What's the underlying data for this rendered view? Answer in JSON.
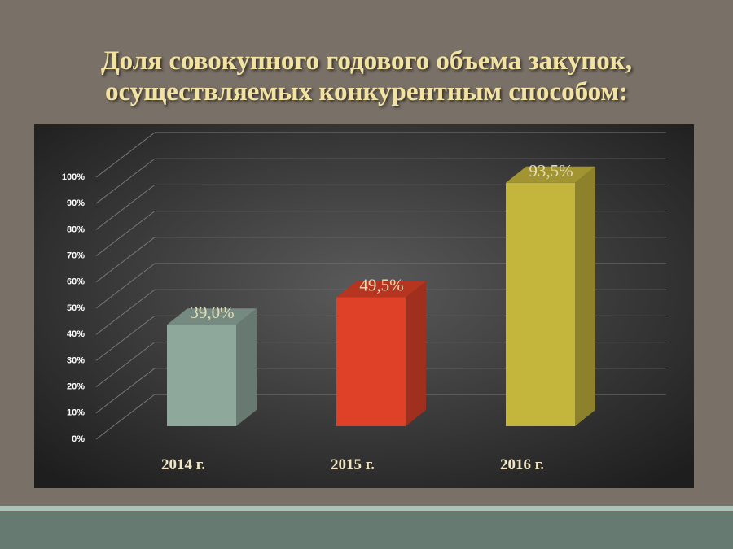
{
  "chart_data": {
    "type": "bar3d",
    "title": [
      "Доля совокупного годового объема закупок,",
      "осуществляемых конкурентным способом:"
    ],
    "categories": [
      "2014 г.",
      "2015 г.",
      "2016 г."
    ],
    "values": [
      39.0,
      49.5,
      93.5
    ],
    "value_labels": [
      "39,0%",
      "49,5%",
      "93,5%"
    ],
    "colors": [
      "#8fa89c",
      "#de4128",
      "#c4b53c"
    ],
    "ylim": [
      0,
      100
    ],
    "yticks": [
      {
        "value": 0,
        "label": "0%"
      },
      {
        "value": 10,
        "label": "10%"
      },
      {
        "value": 20,
        "label": "20%"
      },
      {
        "value": 30,
        "label": "30%"
      },
      {
        "value": 40,
        "label": "40%"
      },
      {
        "value": 50,
        "label": "50%"
      },
      {
        "value": 60,
        "label": "60%"
      },
      {
        "value": 70,
        "label": "70%"
      },
      {
        "value": 80,
        "label": "80%"
      },
      {
        "value": 90,
        "label": "90%"
      },
      {
        "value": 100,
        "label": "100%"
      }
    ],
    "grid": true
  }
}
